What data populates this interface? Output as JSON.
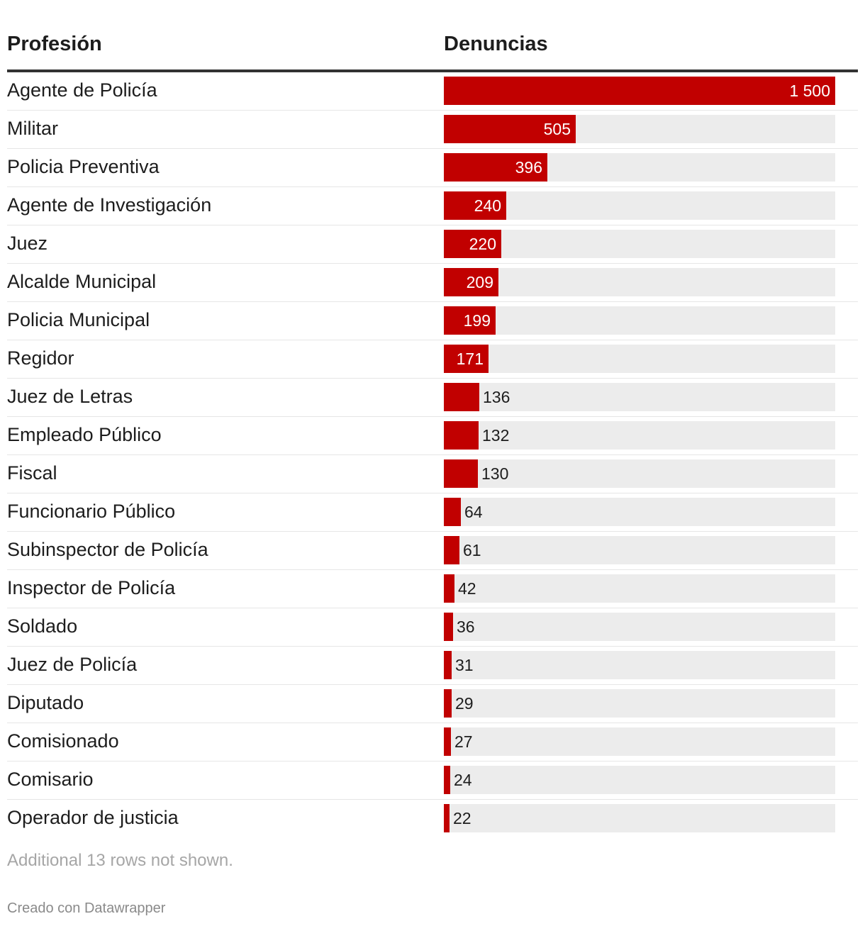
{
  "headers": {
    "profession": "Profesión",
    "complaints": "Denuncias"
  },
  "chart_data": {
    "type": "bar",
    "title": "",
    "xlabel": "Denuncias",
    "ylabel": "Profesión",
    "xlim": [
      0,
      1500
    ],
    "color": "#c10000",
    "track_color": "#ececec",
    "categories": [
      "Agente de Policía",
      "Militar",
      "Policia Preventiva",
      "Agente de Investigación",
      "Juez",
      "Alcalde Municipal",
      "Policia Municipal",
      "Regidor",
      "Juez de Letras",
      "Empleado Público",
      "Fiscal",
      "Funcionario Público",
      "Subinspector de Policía",
      "Inspector de Policía",
      "Soldado",
      "Juez de Policía",
      "Diputado",
      "Comisionado",
      "Comisario",
      "Operador de justicia"
    ],
    "values": [
      1500,
      505,
      396,
      240,
      220,
      209,
      199,
      171,
      136,
      132,
      130,
      64,
      61,
      42,
      36,
      31,
      29,
      27,
      24,
      22
    ],
    "value_labels": [
      "1 500",
      "505",
      "396",
      "240",
      "220",
      "209",
      "199",
      "171",
      "136",
      "132",
      "130",
      "64",
      "61",
      "42",
      "36",
      "31",
      "29",
      "27",
      "24",
      "22"
    ]
  },
  "footer": {
    "note": "Additional 13 rows not shown.",
    "credit": "Creado con Datawrapper"
  }
}
